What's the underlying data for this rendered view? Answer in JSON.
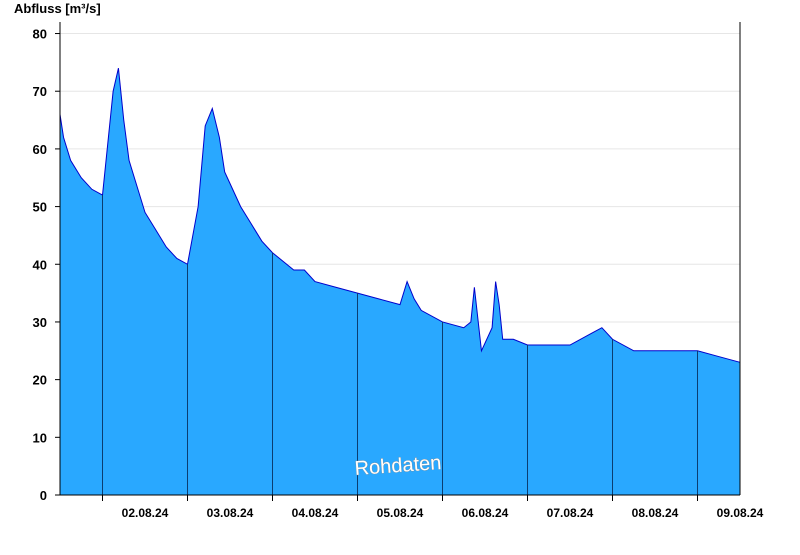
{
  "chart_data": {
    "type": "area",
    "title": "",
    "xlabel": "",
    "ylabel": "Abfluss [m³/s]",
    "ylim": [
      0,
      82
    ],
    "yticks": [
      0,
      10,
      20,
      30,
      40,
      50,
      60,
      70,
      80
    ],
    "xlim": [
      "2024-08-01T12:00",
      "2024-08-09T12:00"
    ],
    "x_tick_labels": [
      "02.08.24",
      "03.08.24",
      "04.08.24",
      "05.08.24",
      "06.08.24",
      "07.08.24",
      "08.08.24",
      "09.08.24"
    ],
    "day_boundaries": [
      "2024-08-02T00:00",
      "2024-08-03T00:00",
      "2024-08-04T00:00",
      "2024-08-05T00:00",
      "2024-08-06T00:00",
      "2024-08-07T00:00",
      "2024-08-08T00:00",
      "2024-08-09T00:00"
    ],
    "grid": true,
    "annotation": "Rohdaten",
    "fill_color": "#29a8ff",
    "line_color": "#0000cc",
    "series": [
      {
        "x": [
          "2024-08-01T12:00",
          "2024-08-01T13:00",
          "2024-08-01T15:00",
          "2024-08-01T18:00",
          "2024-08-01T21:00",
          "2024-08-02T00:00",
          "2024-08-02T03:00",
          "2024-08-02T04:30",
          "2024-08-02T06:00",
          "2024-08-02T07:30",
          "2024-08-02T09:00",
          "2024-08-02T12:00",
          "2024-08-02T15:00",
          "2024-08-02T18:00",
          "2024-08-02T21:00",
          "2024-08-03T00:00",
          "2024-08-03T03:00",
          "2024-08-03T05:00",
          "2024-08-03T07:00",
          "2024-08-03T09:00",
          "2024-08-03T10:30",
          "2024-08-03T12:00",
          "2024-08-03T15:00",
          "2024-08-03T18:00",
          "2024-08-03T21:00",
          "2024-08-04T00:00",
          "2024-08-04T06:00",
          "2024-08-04T09:00",
          "2024-08-04T12:00",
          "2024-08-04T18:00",
          "2024-08-05T00:00",
          "2024-08-05T06:00",
          "2024-08-05T12:00",
          "2024-08-05T14:00",
          "2024-08-05T16:00",
          "2024-08-05T18:00",
          "2024-08-06T00:00",
          "2024-08-06T06:00",
          "2024-08-06T08:00",
          "2024-08-06T09:00",
          "2024-08-06T11:00",
          "2024-08-06T14:00",
          "2024-08-06T15:00",
          "2024-08-06T16:00",
          "2024-08-06T17:00",
          "2024-08-06T18:00",
          "2024-08-06T20:00",
          "2024-08-07T00:00",
          "2024-08-07T06:00",
          "2024-08-07T12:00",
          "2024-08-07T18:00",
          "2024-08-07T21:00",
          "2024-08-08T00:00",
          "2024-08-08T06:00",
          "2024-08-08T12:00",
          "2024-08-08T18:00",
          "2024-08-09T00:00",
          "2024-08-09T06:00",
          "2024-08-09T12:00"
        ],
        "values": [
          66,
          62,
          58,
          55,
          53,
          52,
          70,
          74,
          65,
          58,
          55,
          49,
          46,
          43,
          41,
          40,
          50,
          64,
          67,
          62,
          56,
          54,
          50,
          47,
          44,
          42,
          39,
          39,
          37,
          36,
          35,
          34,
          33,
          37,
          34,
          32,
          30,
          29,
          30,
          36,
          25,
          29,
          37,
          33,
          27,
          27,
          27,
          26,
          26,
          26,
          28,
          29,
          27,
          25,
          25,
          25,
          25,
          24,
          23
        ]
      }
    ]
  }
}
